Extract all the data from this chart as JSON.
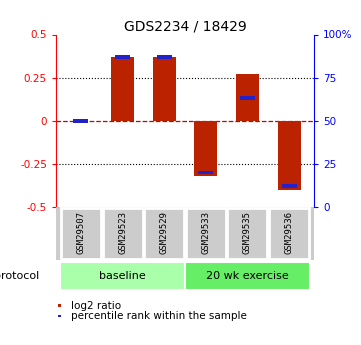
{
  "title": "GDS2234 / 18429",
  "samples": [
    "GSM29507",
    "GSM29523",
    "GSM29529",
    "GSM29533",
    "GSM29535",
    "GSM29536"
  ],
  "log2_ratios": [
    0.0,
    0.37,
    0.37,
    -0.32,
    0.27,
    -0.4
  ],
  "percentile_ranks": [
    50,
    87,
    87,
    20,
    63,
    12
  ],
  "groups": [
    {
      "label": "baseline",
      "start": 0,
      "end": 2,
      "color": "#aaffaa"
    },
    {
      "label": "20 wk exercise",
      "start": 3,
      "end": 5,
      "color": "#66ee66"
    }
  ],
  "ylim_left": [
    -0.5,
    0.5
  ],
  "ylim_right": [
    0,
    100
  ],
  "bar_color": "#bb2200",
  "percentile_color": "#2222cc",
  "zero_line_color": "#cc0000",
  "bar_width": 0.55,
  "bg_color": "#ffffff",
  "title_fontsize": 10,
  "tick_fontsize": 7.5,
  "protocol_label": "protocol",
  "legend_items": [
    "log2 ratio",
    "percentile rank within the sample"
  ],
  "sample_box_color": "#cccccc",
  "sample_box_edge": "#ffffff"
}
